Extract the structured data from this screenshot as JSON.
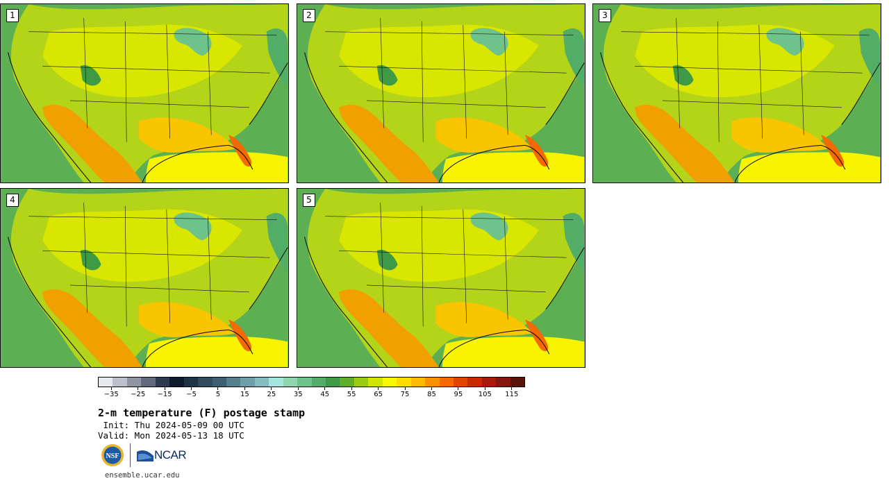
{
  "panels": [
    {
      "label": "1"
    },
    {
      "label": "2"
    },
    {
      "label": "3"
    },
    {
      "label": "4"
    },
    {
      "label": "5"
    }
  ],
  "colorbar": {
    "colors": [
      "#e6e8ee",
      "#bcc0ca",
      "#8f95a3",
      "#626b7e",
      "#2f3a52",
      "#0f1a2c",
      "#1f3347",
      "#304a5e",
      "#3f6072",
      "#557f8d",
      "#6d9ea9",
      "#85bcc2",
      "#a3e4dc",
      "#8fd6b0",
      "#6ec38b",
      "#52ad66",
      "#3e9a44",
      "#5fae2a",
      "#9acb14",
      "#d0e400",
      "#f8f800",
      "#fddd00",
      "#fdbb00",
      "#fa9200",
      "#f46a00",
      "#e24300",
      "#c82a00",
      "#a51b0b",
      "#84160e",
      "#5a130a"
    ],
    "tick_values": [
      -35,
      -25,
      -15,
      -5,
      5,
      15,
      25,
      35,
      45,
      55,
      65,
      75,
      85,
      95,
      105,
      115
    ],
    "tick_labels": [
      "−35",
      "−25",
      "−15",
      "−5",
      "5",
      "15",
      "25",
      "35",
      "45",
      "55",
      "65",
      "75",
      "85",
      "95",
      "105",
      "115"
    ],
    "min": -40,
    "max": 120
  },
  "title": "2-m temperature (F) postage stamp",
  "init": " Init: Thu 2024-05-09 00 UTC",
  "valid": "Valid: Mon 2024-05-13 18 UTC",
  "logos": {
    "nsf": "NSF",
    "ncar": "NCAR"
  },
  "url": "ensemble.ucar.edu"
}
